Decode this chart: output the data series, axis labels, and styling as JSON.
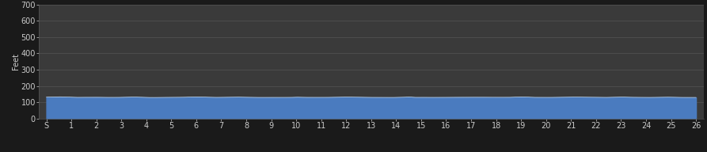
{
  "background_color": "#1a1a1a",
  "plot_bg_color": "#3a3a3a",
  "fill_color": "#4a7bbf",
  "line_color": "#c8d8e8",
  "grid_color": "#555555",
  "text_color": "#cccccc",
  "ylabel": "Feet",
  "ylim": [
    0,
    700
  ],
  "yticks": [
    0,
    100,
    200,
    300,
    400,
    500,
    600,
    700
  ],
  "xlim": [
    -0.3,
    26.3
  ],
  "xtick_labels": [
    "S",
    "1",
    "2",
    "3",
    "4",
    "5",
    "6",
    "7",
    "8",
    "9",
    "10",
    "11",
    "12",
    "13",
    "14",
    "15",
    "16",
    "17",
    "18",
    "19",
    "20",
    "21",
    "22",
    "23",
    "24",
    "25",
    "26"
  ],
  "xtick_positions": [
    0,
    1,
    2,
    3,
    4,
    5,
    6,
    7,
    8,
    9,
    10,
    11,
    12,
    13,
    14,
    15,
    16,
    17,
    18,
    19,
    20,
    21,
    22,
    23,
    24,
    25,
    26
  ],
  "base_elevation": 130,
  "tick_fontsize": 7
}
